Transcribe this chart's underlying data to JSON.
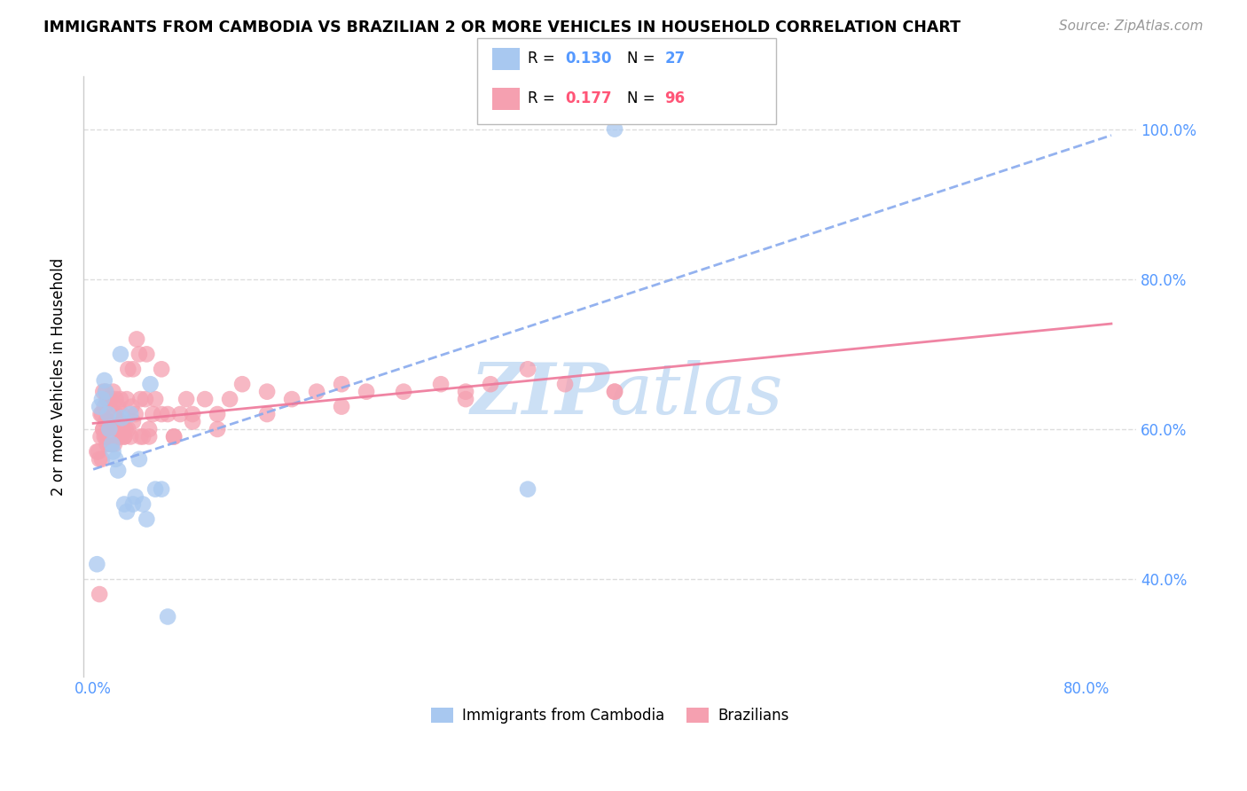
{
  "title": "IMMIGRANTS FROM CAMBODIA VS BRAZILIAN 2 OR MORE VEHICLES IN HOUSEHOLD CORRELATION CHART",
  "source": "Source: ZipAtlas.com",
  "ylabel": "2 or more Vehicles in Household",
  "y_ticks": [
    0.4,
    0.6,
    0.8,
    1.0
  ],
  "y_tick_labels": [
    "40.0%",
    "60.0%",
    "80.0%",
    "100.0%"
  ],
  "x_min": -0.008,
  "x_max": 0.84,
  "y_min": 0.27,
  "y_max": 1.07,
  "legend_R1": "0.130",
  "legend_N1": "27",
  "legend_R2": "0.177",
  "legend_N2": "96",
  "color_cambodia": "#a8c8f0",
  "color_brazil": "#f5a0b0",
  "color_blue_text": "#5599ff",
  "color_pink_text": "#ff5577",
  "trendline_cambodia_color": "#88aaee",
  "trendline_brazil_color": "#ee7799",
  "watermark_color": "#cce0f5",
  "cambodia_x": [
    0.003,
    0.005,
    0.007,
    0.009,
    0.01,
    0.012,
    0.013,
    0.015,
    0.016,
    0.018,
    0.02,
    0.022,
    0.023,
    0.025,
    0.027,
    0.03,
    0.032,
    0.034,
    0.037,
    0.04,
    0.043,
    0.046,
    0.05,
    0.055,
    0.06,
    0.35,
    0.42
  ],
  "cambodia_y": [
    0.42,
    0.63,
    0.64,
    0.665,
    0.65,
    0.62,
    0.6,
    0.58,
    0.57,
    0.56,
    0.545,
    0.7,
    0.615,
    0.5,
    0.49,
    0.62,
    0.5,
    0.51,
    0.56,
    0.5,
    0.48,
    0.66,
    0.52,
    0.52,
    0.35,
    0.52,
    1.0
  ],
  "brazil_x": [
    0.003,
    0.004,
    0.005,
    0.006,
    0.006,
    0.007,
    0.007,
    0.008,
    0.008,
    0.009,
    0.009,
    0.01,
    0.01,
    0.011,
    0.011,
    0.012,
    0.012,
    0.013,
    0.013,
    0.014,
    0.014,
    0.015,
    0.015,
    0.016,
    0.016,
    0.017,
    0.018,
    0.018,
    0.019,
    0.02,
    0.02,
    0.021,
    0.022,
    0.022,
    0.023,
    0.024,
    0.025,
    0.026,
    0.027,
    0.028,
    0.03,
    0.031,
    0.032,
    0.034,
    0.035,
    0.037,
    0.038,
    0.04,
    0.042,
    0.043,
    0.045,
    0.048,
    0.05,
    0.055,
    0.06,
    0.065,
    0.07,
    0.075,
    0.08,
    0.09,
    0.1,
    0.11,
    0.12,
    0.14,
    0.16,
    0.18,
    0.2,
    0.22,
    0.25,
    0.28,
    0.3,
    0.32,
    0.35,
    0.38,
    0.42,
    0.005,
    0.008,
    0.01,
    0.012,
    0.015,
    0.018,
    0.02,
    0.022,
    0.025,
    0.028,
    0.032,
    0.038,
    0.045,
    0.055,
    0.065,
    0.08,
    0.1,
    0.14,
    0.2,
    0.3,
    0.42
  ],
  "brazil_y": [
    0.57,
    0.57,
    0.38,
    0.59,
    0.62,
    0.56,
    0.62,
    0.6,
    0.65,
    0.59,
    0.63,
    0.61,
    0.65,
    0.58,
    0.64,
    0.59,
    0.64,
    0.61,
    0.59,
    0.58,
    0.64,
    0.6,
    0.59,
    0.62,
    0.65,
    0.58,
    0.59,
    0.64,
    0.6,
    0.59,
    0.63,
    0.61,
    0.59,
    0.64,
    0.62,
    0.6,
    0.59,
    0.6,
    0.64,
    0.68,
    0.59,
    0.63,
    0.68,
    0.62,
    0.72,
    0.7,
    0.64,
    0.59,
    0.64,
    0.7,
    0.59,
    0.62,
    0.64,
    0.68,
    0.62,
    0.59,
    0.62,
    0.64,
    0.62,
    0.64,
    0.62,
    0.64,
    0.66,
    0.65,
    0.64,
    0.65,
    0.66,
    0.65,
    0.65,
    0.66,
    0.65,
    0.66,
    0.68,
    0.66,
    0.65,
    0.56,
    0.6,
    0.59,
    0.61,
    0.58,
    0.62,
    0.6,
    0.61,
    0.59,
    0.6,
    0.61,
    0.59,
    0.6,
    0.62,
    0.59,
    0.61,
    0.6,
    0.62,
    0.63,
    0.64,
    0.65
  ]
}
